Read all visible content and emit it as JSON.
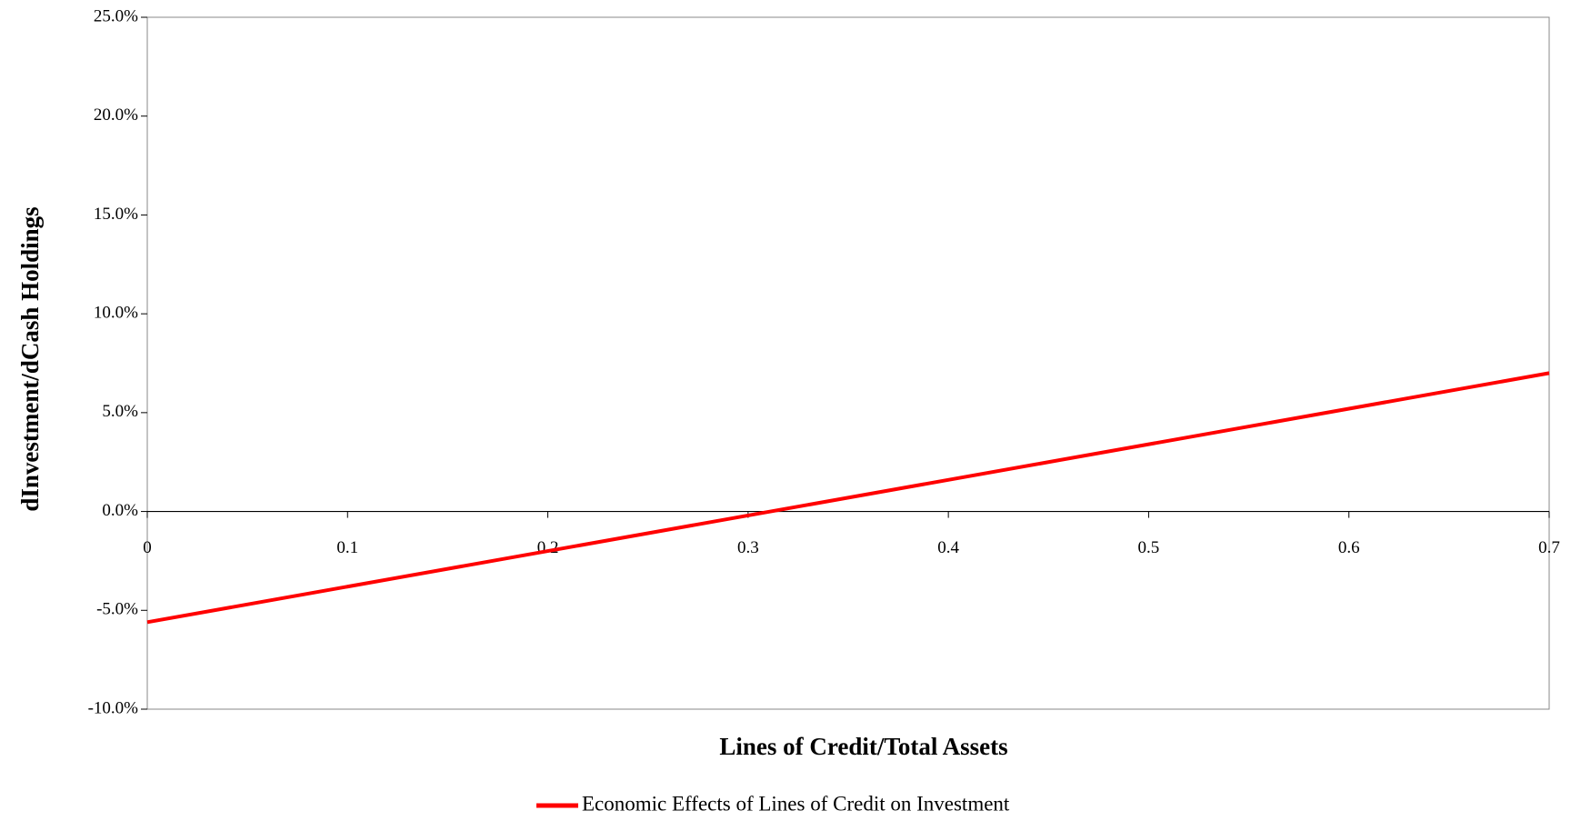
{
  "chart_data": {
    "type": "line",
    "xlabel": "Lines of Credit/Total Assets",
    "ylabel": "dInvestment/dCash Holdings",
    "x": [
      0,
      0.7
    ],
    "series": [
      {
        "name": "Economic Effects of Lines of Credit on Investment",
        "color": "#ff0000",
        "values": [
          -5.6,
          7.0
        ]
      }
    ],
    "xlim": [
      0,
      0.7
    ],
    "xticks": [
      0,
      0.1,
      0.2,
      0.3,
      0.4,
      0.5,
      0.6,
      0.7
    ],
    "ylim": [
      -10,
      25
    ],
    "yticks": [
      {
        "value": -10,
        "label": "-10.0%"
      },
      {
        "value": -5,
        "label": "-5.0%"
      },
      {
        "value": 0,
        "label": "0.0%"
      },
      {
        "value": 5,
        "label": "5.0%"
      },
      {
        "value": 10,
        "label": "10.0%"
      },
      {
        "value": 15,
        "label": "15.0%"
      },
      {
        "value": 20,
        "label": "20.0%"
      },
      {
        "value": 25,
        "label": "25.0%"
      }
    ],
    "grid": false,
    "legend": "bottom"
  }
}
